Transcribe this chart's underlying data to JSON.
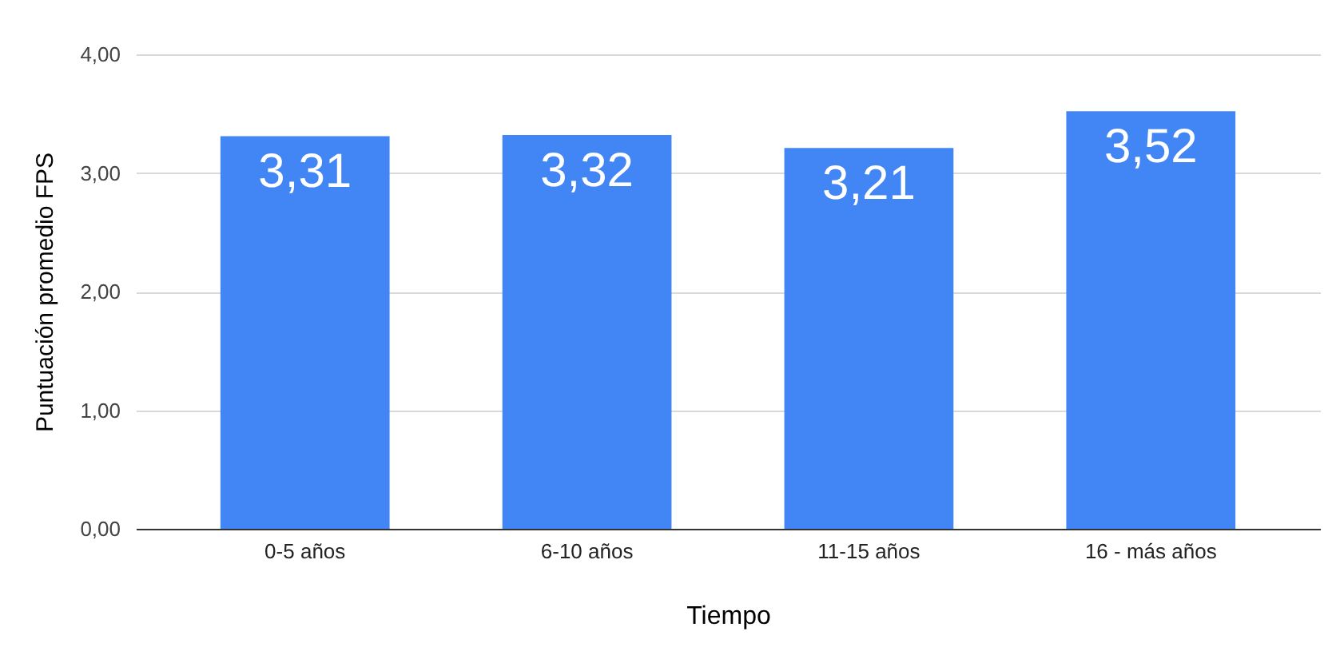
{
  "chart_data": {
    "type": "bar",
    "xlabel": "Tiempo",
    "ylabel": "Puntuación promedio FPS",
    "categories": [
      "0-5 años",
      "6-10 años",
      "11-15 años",
      "16 - más años"
    ],
    "values": [
      3.31,
      3.32,
      3.21,
      3.52
    ],
    "value_labels": [
      "3,31",
      "3,32",
      "3,21",
      "3,52"
    ],
    "color": "#4285f4",
    "ylim": [
      0,
      4
    ],
    "yticks": [
      {
        "value": 0,
        "label": "0,00"
      },
      {
        "value": 1,
        "label": "1,00"
      },
      {
        "value": 2,
        "label": "2,00"
      },
      {
        "value": 3,
        "label": "3,00"
      },
      {
        "value": 4,
        "label": "4,00"
      }
    ],
    "grid": "y"
  }
}
